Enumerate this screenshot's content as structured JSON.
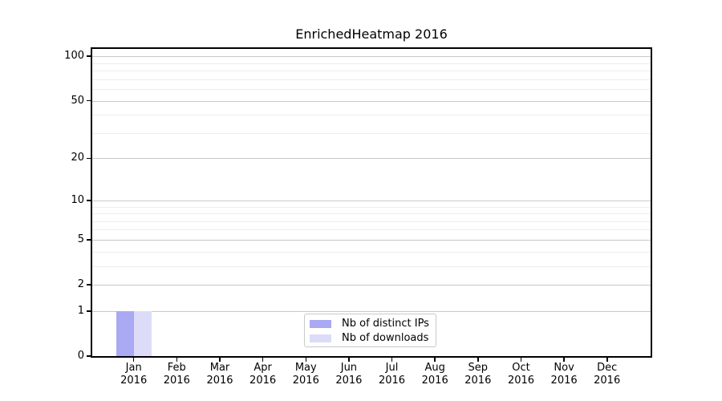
{
  "title": "EnrichedHeatmap 2016",
  "legend": {
    "items": [
      {
        "label": "Nb of distinct IPs",
        "color": "#a9a9f4"
      },
      {
        "label": "Nb of downloads",
        "color": "#dcdcf9"
      }
    ]
  },
  "chart_data": {
    "type": "bar",
    "title": "EnrichedHeatmap 2016",
    "categories": [
      "Jan 2016",
      "Feb 2016",
      "Mar 2016",
      "Apr 2016",
      "May 2016",
      "Jun 2016",
      "Jul 2016",
      "Aug 2016",
      "Sep 2016",
      "Oct 2016",
      "Nov 2016",
      "Dec 2016"
    ],
    "x_tick_month": [
      "Jan",
      "Feb",
      "Mar",
      "Apr",
      "May",
      "Jun",
      "Jul",
      "Aug",
      "Sep",
      "Oct",
      "Nov",
      "Dec"
    ],
    "x_tick_year": "2016",
    "series": [
      {
        "name": "Nb of distinct IPs",
        "color": "#a9a9f4",
        "values": [
          1,
          0,
          0,
          0,
          0,
          0,
          0,
          0,
          0,
          0,
          0,
          0
        ]
      },
      {
        "name": "Nb of downloads",
        "color": "#dcdcf9",
        "values": [
          1,
          0,
          0,
          0,
          0,
          0,
          0,
          0,
          0,
          0,
          0,
          0
        ]
      }
    ],
    "y_axis": {
      "scale": "log1p",
      "major_ticks": [
        0,
        1,
        2,
        5,
        10,
        20,
        50,
        100
      ],
      "minor_gridlines": [
        3,
        4,
        6,
        7,
        8,
        9,
        30,
        40,
        60,
        70,
        80,
        90
      ],
      "max": 112
    },
    "grid": "horizontal-major-and-minor",
    "legend_position": "inside-bottom-center",
    "colors": {
      "bar_distinct_ips": "#a9a9f4",
      "bar_downloads": "#dcdcf9",
      "major_grid": "#c8c8c8",
      "minor_grid": "#ececec",
      "spine": "#000000",
      "text": "#000000",
      "background": "#ffffff"
    }
  }
}
